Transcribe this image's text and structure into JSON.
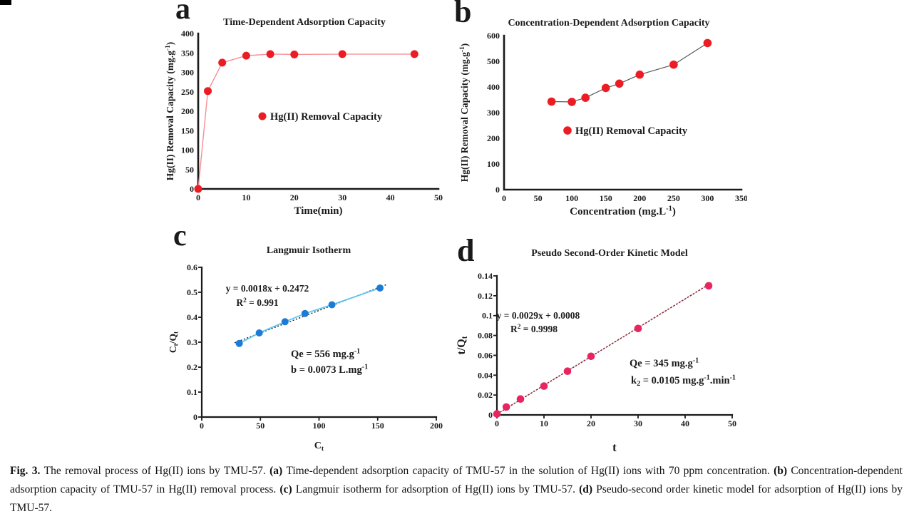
{
  "figure": {
    "caption_segments": [
      {
        "text": "Fig. 3. ",
        "bold": true
      },
      {
        "text": "The removal process of Hg(II) ions by TMU-57. ",
        "bold": false
      },
      {
        "text": "(a) ",
        "bold": true
      },
      {
        "text": "Time-dependent adsorption capacity of TMU-57 in the solution of Hg(II) ions with 70 ppm concentration. ",
        "bold": false
      },
      {
        "text": "(b) ",
        "bold": true
      },
      {
        "text": "Concentration-dependent adsorption capacity of TMU-57 in Hg(II) removal process. ",
        "bold": false
      },
      {
        "text": "(c) ",
        "bold": true
      },
      {
        "text": "Langmuir isotherm for adsorption of Hg(II) ions by TMU-57. ",
        "bold": false
      },
      {
        "text": "(d) ",
        "bold": true
      },
      {
        "text": "Pseudo-second order kinetic model for adsorption of Hg(II) ions by TMU-57.",
        "bold": false
      }
    ]
  },
  "chart_data": [
    {
      "panel": "a",
      "panel_label": "a",
      "type": "line",
      "title": "Time-Dependent Adsorption Capacity",
      "xlabel": "Time(min)",
      "ylabel": "Hg(II) Removal Capacity (mg.g^-1^)",
      "xlim": [
        0,
        50
      ],
      "ylim": [
        0,
        400
      ],
      "xticks": [
        "0",
        "10",
        "20",
        "30",
        "40",
        "50"
      ],
      "yticks": [
        "0",
        "50",
        "100",
        "150",
        "200",
        "250",
        "300",
        "350",
        "400"
      ],
      "x": [
        0,
        2,
        5,
        10,
        15,
        20,
        30,
        45
      ],
      "y": [
        0,
        252,
        325,
        343,
        347,
        346,
        347,
        347
      ],
      "marker_color": "#ec1c24",
      "line_color": "#f58e92",
      "legend_label": "Hg(II) Removal Capacity",
      "legend_color": "#ec1c24"
    },
    {
      "panel": "b",
      "panel_label": "b",
      "type": "line",
      "title": "Concentration-Dependent Adsorption Capacity",
      "xlabel": "Concentration (mg.L^-1^)",
      "ylabel": "Hg(II) Removal Capacity (mg.g^-1^)",
      "xlim": [
        0,
        350
      ],
      "ylim": [
        0,
        600
      ],
      "xticks": [
        "0",
        "50",
        "100",
        "150",
        "200",
        "250",
        "300",
        "350"
      ],
      "yticks": [
        "0",
        "100",
        "200",
        "300",
        "400",
        "500",
        "600"
      ],
      "x": [
        70,
        100,
        120,
        150,
        170,
        200,
        250,
        300
      ],
      "y": [
        343,
        342,
        358,
        396,
        413,
        448,
        487,
        571
      ],
      "marker_color": "#ec1c24",
      "line_color": "#58595b",
      "legend_label": "Hg(II) Removal Capacity",
      "legend_color": "#ec1c24"
    },
    {
      "panel": "c",
      "panel_label": "c",
      "type": "scatter",
      "title": "Langmuir Isotherm",
      "xlabel": "C~t~",
      "ylabel": "C~t~/Q~t~",
      "xlim": [
        0,
        200
      ],
      "ylim": [
        0,
        0.6
      ],
      "xticks": [
        "0",
        "50",
        "100",
        "150",
        "200"
      ],
      "yticks": [
        "0",
        "0.1",
        "0.2",
        "0.3",
        "0.4",
        "0.5",
        "0.6"
      ],
      "x": [
        32,
        49,
        71,
        88,
        111,
        152
      ],
      "y": [
        0.295,
        0.337,
        0.382,
        0.415,
        0.45,
        0.517
      ],
      "marker_color": "#1a7cd5",
      "line_color": "#5ec6f2",
      "trend": {
        "slope": 0.0018,
        "intercept": 0.2472,
        "x_start": 28,
        "x_end": 157,
        "color": "#1a1a1a",
        "dash": "2 2.6"
      },
      "annotations": [
        "y = 0.0018x + 0.2472",
        "R^2^ = 0.991",
        "Qe = 556 mg.g^-1^",
        "b = 0.0073 L.mg^-1^"
      ]
    },
    {
      "panel": "d",
      "panel_label": "d",
      "type": "scatter",
      "title": "Pseudo Second-Order Kinetic Model",
      "xlabel": "t",
      "ylabel": "t/Q~t~",
      "xlim": [
        0,
        50
      ],
      "ylim": [
        0,
        0.14
      ],
      "xticks": [
        "0",
        "10",
        "20",
        "30",
        "40",
        "50"
      ],
      "yticks": [
        "0",
        "0.02",
        "0.04",
        "0.06",
        "0.08",
        "0.1",
        "0.12",
        "0.14"
      ],
      "x": [
        0,
        2,
        5,
        10,
        15,
        20,
        30,
        45
      ],
      "y": [
        0.001,
        0.008,
        0.016,
        0.029,
        0.044,
        0.059,
        0.087,
        0.13
      ],
      "marker_color": "#e82561",
      "trend": {
        "slope": 0.0029,
        "intercept": 0.0008,
        "x_start": 0,
        "x_end": 45.7,
        "color": "#8b2639",
        "dash": "3 1.6"
      },
      "annotations": [
        "y = 0.0029x + 0.0008",
        "R^2^ = 0.9998",
        "Qe = 345 mg.g^-1^",
        "k~2~ = 0.0105 mg.g^-1^.min^-1^"
      ]
    }
  ]
}
